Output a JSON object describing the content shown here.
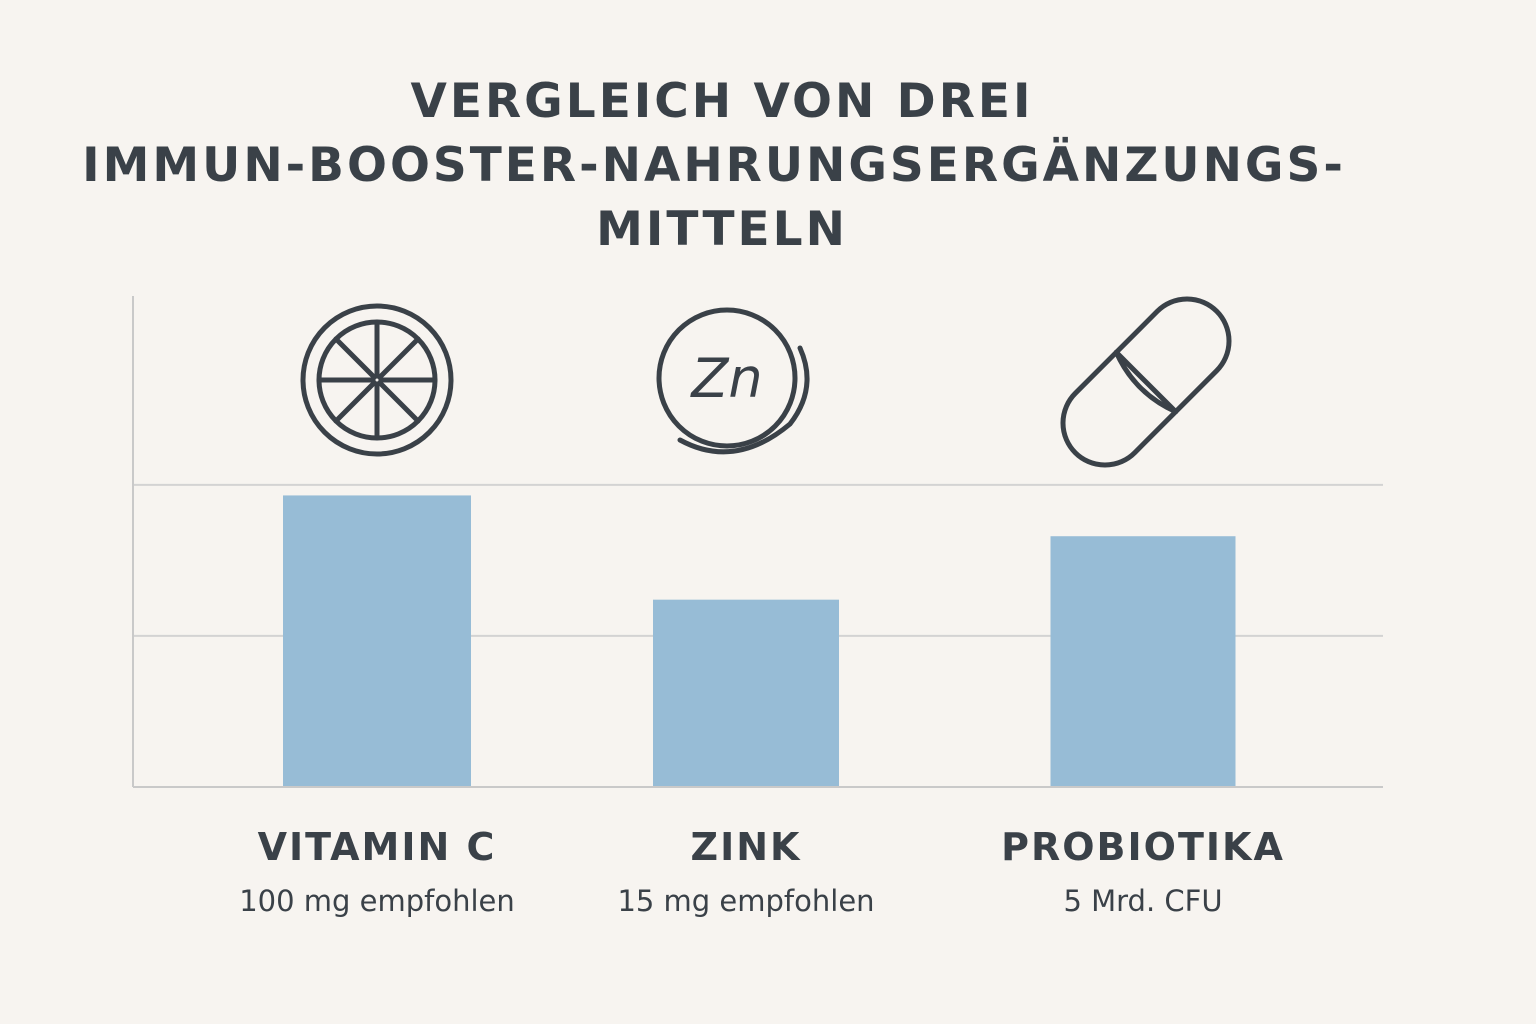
{
  "title_lines": [
    "VERGLEICH VON DREI",
    "IMMUN-BOOSTER-NAHRUNGSERGÄNZUNGS-",
    "MITTELN"
  ],
  "colors": {
    "bar": "#97bcd6",
    "gridline": "#d3d3d3",
    "axis": "#c9c9c9",
    "icon_stroke": "#3a4148",
    "text": "#3a4148"
  },
  "chart_data": {
    "type": "bar",
    "categories": [
      "VITAMIN C",
      "ZINK",
      "PROBIOTIKA"
    ],
    "notes": [
      "100 mg empfohlen",
      "15 mg empfohlen",
      "5 Mrd. CFU"
    ],
    "icons": [
      "citrus-slice-icon",
      "zinc-tablet-icon",
      "capsule-icon"
    ],
    "values": [
      1.93,
      1.24,
      1.66
    ],
    "ylim": [
      0,
      3.25
    ],
    "grid": true,
    "title": "VERGLEICH VON DREI IMMUN-BOOSTER-NAHRUNGSERGÄNZUNGSMITTELN",
    "xlabel": "",
    "ylabel": ""
  }
}
